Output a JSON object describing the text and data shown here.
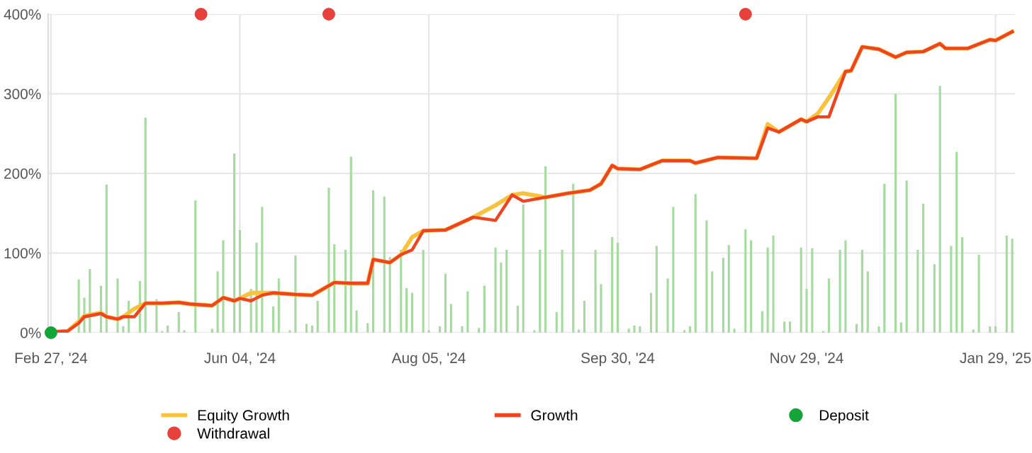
{
  "chart_data": {
    "type": "line",
    "categories": [
      "Feb 27, '24",
      null,
      null,
      null,
      null,
      null,
      null,
      null,
      null,
      null,
      null,
      null,
      null,
      null,
      null,
      null,
      null,
      null,
      null,
      null,
      null,
      null,
      null,
      null,
      null,
      null,
      null,
      null,
      null,
      null,
      null,
      null,
      null,
      null,
      "Jun 04, '24",
      null,
      null,
      null,
      null,
      null,
      null,
      null,
      null,
      null,
      null,
      null,
      null,
      null,
      null,
      null,
      null,
      null,
      null,
      null,
      null,
      null,
      null,
      null,
      null,
      null,
      null,
      null,
      null,
      null,
      null,
      null,
      null,
      null,
      "Aug 05, '24",
      null,
      null,
      null,
      null,
      null,
      null,
      null,
      null,
      null,
      null,
      null,
      null,
      null,
      null,
      null,
      null,
      null,
      null,
      null,
      null,
      null,
      null,
      null,
      null,
      null,
      null,
      null,
      null,
      null,
      null,
      null,
      null,
      null,
      "Sep 30, '24",
      null,
      null,
      null,
      null,
      null,
      null,
      null,
      null,
      null,
      null,
      null,
      null,
      null,
      null,
      null,
      null,
      null,
      null,
      null,
      null,
      null,
      null,
      null,
      null,
      null,
      null,
      null,
      null,
      null,
      null,
      null,
      null,
      null,
      "Nov 29, '24",
      null,
      null,
      null,
      null,
      null,
      null,
      null,
      null,
      null,
      null,
      null,
      null,
      null,
      null,
      null,
      null,
      null,
      null,
      null,
      null,
      null,
      null,
      null,
      null,
      null,
      null,
      null,
      null,
      null,
      null,
      null,
      null,
      null,
      "Jan 29, '25",
      null,
      null,
      null
    ],
    "ylim": [
      0,
      400
    ],
    "yticks": [
      {
        "value": 0,
        "label": "0%"
      },
      {
        "value": 100,
        "label": "100%"
      },
      {
        "value": 200,
        "label": "200%"
      },
      {
        "value": 300,
        "label": "300%"
      },
      {
        "value": 400,
        "label": "400%"
      }
    ],
    "grid": true,
    "legend": "bottom",
    "series": [
      {
        "type": "bar",
        "color": "#a6dba0",
        "values": [
          null,
          null,
          null,
          null,
          null,
          67,
          44,
          80,
          null,
          59,
          186,
          null,
          68,
          8,
          40,
          null,
          65,
          270,
          null,
          42,
          2,
          9,
          null,
          26,
          3,
          null,
          166,
          null,
          null,
          5,
          77,
          116,
          null,
          225,
          129,
          null,
          55,
          113,
          158,
          null,
          33,
          68,
          null,
          3,
          97,
          null,
          11,
          9,
          40,
          null,
          182,
          111,
          null,
          104,
          221,
          28,
          null,
          12,
          179,
          null,
          171,
          95,
          null,
          104,
          56,
          50,
          null,
          104,
          3,
          null,
          8,
          74,
          36,
          null,
          8,
          52,
          null,
          6,
          59,
          null,
          107,
          88,
          104,
          null,
          34,
          161,
          null,
          3,
          104,
          209,
          null,
          26,
          104,
          null,
          187,
          4,
          40,
          null,
          104,
          61,
          null,
          120,
          113,
          null,
          5,
          9,
          8,
          null,
          50,
          109,
          null,
          68,
          158,
          null,
          3,
          8,
          174,
          null,
          141,
          77,
          null,
          94,
          110,
          5,
          null,
          130,
          116,
          null,
          27,
          107,
          122,
          null,
          14,
          14,
          null,
          107,
          55,
          106,
          null,
          2,
          68,
          null,
          104,
          116,
          null,
          11,
          104,
          77,
          null,
          8,
          187,
          null,
          300,
          13,
          191,
          null,
          104,
          162,
          null,
          86,
          310,
          null,
          109,
          227,
          120,
          null,
          4,
          98,
          null,
          8,
          8,
          null,
          122,
          118
        ]
      },
      {
        "name": "Equity Growth",
        "color": "#f9c23c",
        "values": [
          1,
          null,
          null,
          2,
          null,
          14,
          21,
          null,
          null,
          25,
          20,
          null,
          17,
          20,
          null,
          30,
          null,
          37,
          null,
          null,
          37,
          null,
          null,
          38,
          null,
          36,
          null,
          null,
          null,
          34,
          null,
          44,
          null,
          40,
          43,
          null,
          50,
          null,
          50,
          null,
          50,
          null,
          null,
          null,
          48,
          null,
          null,
          47,
          null,
          null,
          null,
          63,
          null,
          null,
          62,
          null,
          null,
          62,
          92,
          null,
          null,
          88,
          null,
          98,
          null,
          120,
          null,
          128,
          null,
          null,
          null,
          129,
          null,
          null,
          null,
          null,
          145,
          null,
          null,
          null,
          160,
          null,
          null,
          173,
          null,
          175,
          null,
          null,
          null,
          170,
          null,
          null,
          null,
          175,
          null,
          null,
          null,
          179,
          null,
          187,
          null,
          210,
          206,
          null,
          null,
          null,
          205,
          null,
          null,
          null,
          216,
          null,
          null,
          null,
          null,
          216,
          213,
          null,
          null,
          null,
          220,
          null,
          null,
          null,
          null,
          null,
          null,
          219,
          null,
          262,
          null,
          252,
          null,
          null,
          null,
          268,
          265,
          null,
          275,
          null,
          295,
          null,
          null,
          328,
          329,
          null,
          359,
          null,
          null,
          356,
          null,
          null,
          346,
          null,
          352,
          null,
          null,
          353,
          null,
          null,
          363,
          357,
          null,
          null,
          null,
          357,
          null,
          null,
          null,
          368,
          367,
          null,
          null,
          378
        ]
      },
      {
        "name": "Growth",
        "color": "#f0431f",
        "values": [
          1,
          null,
          null,
          2,
          null,
          12,
          20,
          null,
          null,
          24,
          20,
          null,
          17,
          20,
          null,
          20,
          null,
          37,
          null,
          null,
          37,
          null,
          null,
          38,
          null,
          36,
          null,
          null,
          null,
          34,
          null,
          44,
          null,
          40,
          43,
          null,
          40,
          null,
          47,
          null,
          50,
          null,
          null,
          null,
          48,
          null,
          null,
          47,
          null,
          null,
          null,
          63,
          null,
          null,
          62,
          null,
          null,
          62,
          92,
          null,
          null,
          88,
          null,
          98,
          null,
          104,
          null,
          128,
          null,
          null,
          null,
          129,
          null,
          null,
          null,
          null,
          145,
          null,
          null,
          null,
          141,
          null,
          null,
          173,
          null,
          165,
          null,
          null,
          null,
          170,
          null,
          null,
          null,
          175,
          null,
          null,
          null,
          179,
          null,
          187,
          null,
          210,
          206,
          null,
          null,
          null,
          205,
          null,
          null,
          null,
          216,
          null,
          null,
          null,
          null,
          216,
          213,
          null,
          null,
          null,
          220,
          null,
          null,
          null,
          null,
          null,
          null,
          219,
          null,
          257,
          null,
          252,
          null,
          null,
          null,
          268,
          265,
          null,
          271,
          null,
          271,
          null,
          null,
          328,
          329,
          null,
          359,
          null,
          null,
          356,
          null,
          null,
          346,
          null,
          352,
          null,
          null,
          353,
          null,
          null,
          363,
          357,
          null,
          null,
          null,
          357,
          null,
          null,
          null,
          368,
          367,
          null,
          null,
          378
        ]
      },
      {
        "type": "scatter",
        "name": "Deposit",
        "color": "#13a538",
        "values": [
          0,
          null,
          null,
          null,
          null,
          null,
          null,
          null,
          null,
          null,
          null,
          null,
          null,
          null,
          null,
          null,
          null,
          null,
          null,
          null,
          null,
          null,
          null,
          null,
          null,
          null,
          null,
          null,
          null,
          null,
          null,
          null,
          null,
          null,
          null,
          null,
          null,
          null,
          null,
          null,
          null,
          null,
          null,
          null,
          null,
          null,
          null,
          null,
          null,
          null,
          null,
          null,
          null,
          null,
          null,
          null,
          null,
          null,
          null,
          null,
          null,
          null,
          null,
          null,
          null,
          null,
          null,
          null,
          null,
          null,
          null,
          null,
          null,
          null,
          null,
          null,
          null,
          null,
          null,
          null,
          null,
          null,
          null,
          null,
          null,
          null,
          null,
          null,
          null,
          null,
          null,
          null,
          null,
          null,
          null,
          null,
          null,
          null,
          null,
          null,
          null,
          null,
          null,
          null,
          null,
          null,
          null,
          null,
          null,
          null,
          null,
          null,
          null,
          null,
          null,
          null,
          null,
          null,
          null,
          null,
          null,
          null,
          null,
          null,
          null,
          null,
          null,
          null,
          null,
          null,
          null,
          null,
          null,
          null,
          null,
          null,
          null,
          null,
          null,
          null,
          null,
          null,
          null,
          null,
          null,
          null,
          null,
          null,
          null,
          null,
          null,
          null,
          null,
          null,
          null,
          null,
          null,
          null,
          null,
          null,
          null,
          null,
          null,
          null,
          null,
          null,
          null,
          null,
          null,
          null,
          null,
          null,
          null,
          null
        ]
      },
      {
        "type": "scatter",
        "name": "Withdrawal",
        "color": "#e8403a",
        "values": [
          null,
          null,
          null,
          null,
          null,
          null,
          null,
          null,
          null,
          null,
          null,
          null,
          null,
          null,
          null,
          null,
          null,
          null,
          null,
          null,
          null,
          null,
          null,
          null,
          null,
          null,
          null,
          400,
          null,
          null,
          null,
          null,
          null,
          null,
          null,
          null,
          null,
          null,
          null,
          null,
          null,
          null,
          null,
          null,
          null,
          null,
          null,
          null,
          null,
          null,
          400,
          null,
          null,
          null,
          null,
          null,
          null,
          null,
          null,
          null,
          null,
          null,
          null,
          null,
          null,
          null,
          null,
          null,
          null,
          null,
          null,
          null,
          null,
          null,
          null,
          null,
          null,
          null,
          null,
          null,
          null,
          null,
          null,
          null,
          null,
          null,
          null,
          null,
          null,
          null,
          null,
          null,
          null,
          null,
          null,
          null,
          null,
          null,
          null,
          null,
          null,
          null,
          null,
          null,
          null,
          null,
          null,
          null,
          null,
          null,
          null,
          null,
          null,
          null,
          null,
          null,
          null,
          null,
          null,
          null,
          null,
          null,
          null,
          null,
          null,
          400,
          null,
          null,
          null,
          null,
          null,
          null,
          null,
          null,
          null,
          null,
          null,
          null,
          null,
          null,
          null,
          null,
          null,
          null,
          null,
          null,
          null,
          null,
          null,
          null,
          null,
          null,
          null,
          null,
          null,
          null,
          null,
          null,
          null,
          null,
          null,
          null,
          null,
          null,
          null,
          null,
          null,
          null,
          null,
          null,
          null,
          null,
          null,
          null
        ]
      }
    ]
  }
}
